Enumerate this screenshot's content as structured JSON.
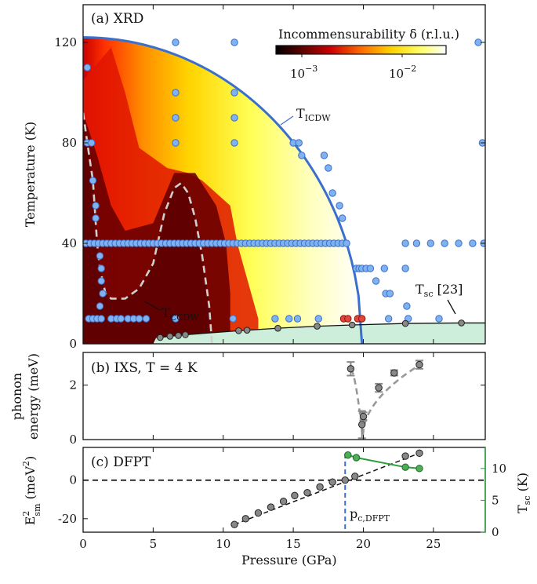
{
  "colors": {
    "icdw_line": "#3a6fce",
    "point_fill": "#7fb2ee",
    "point_edge": "#3a6fce",
    "sc_fill": "#cdeeda",
    "dfpt_green": "#2e9e3e",
    "red_point": "#e0463b",
    "gray_point": "#888888"
  },
  "chart_data": [
    {
      "type": "heatmap",
      "panel": "(a) XRD",
      "title": "(a) XRD",
      "xlabel": "",
      "ylabel": "Temperature (K)",
      "xlim": [
        0,
        28.7
      ],
      "ylim": [
        0,
        135
      ],
      "yticks": [
        "0",
        "40",
        "80",
        "120"
      ],
      "colorbar": {
        "label": "Incommensurability δ (r.l.u.)",
        "scale": "log",
        "tick_labels": [
          "10^-3",
          "10^-2"
        ],
        "colormap": [
          "#000000",
          "#5a0000",
          "#cc0000",
          "#ff6a00",
          "#ffd400",
          "#ffff66",
          "#ffffff"
        ]
      },
      "T_ICDW": {
        "label": "T_ICDW",
        "T0": 122,
        "Pc": 19.9
      },
      "T_CCDW": {
        "label": "T_CCDW",
        "x": [
          0,
          0.3,
          0.7,
          1.0,
          1.2,
          1.6,
          2.0,
          3.0,
          4.0,
          5.0,
          5.8,
          6.5,
          7.0,
          7.5,
          8.0,
          8.5,
          9.0,
          9.2
        ],
        "y": [
          92,
          80,
          65,
          40,
          30,
          20,
          18,
          18,
          22,
          32,
          52,
          62,
          64,
          60,
          50,
          35,
          15,
          0
        ]
      },
      "T_sc": {
        "label": "Tsc [23]",
        "x": [
          5.5,
          6.2,
          6.8,
          7.3,
          11.1,
          11.7,
          13.9,
          16.7,
          19.2,
          23.0,
          27.0
        ],
        "y": [
          2.5,
          3.0,
          3.3,
          3.6,
          5.2,
          5.4,
          6.2,
          7.0,
          7.5,
          8.1,
          8.3
        ]
      },
      "scan_points": [
        {
          "x": 0.3,
          "y": 110
        },
        {
          "x": 6.6,
          "y": 120
        },
        {
          "x": 10.8,
          "y": 120
        },
        {
          "x": 28.2,
          "y": 120
        },
        {
          "x": 6.6,
          "y": 100
        },
        {
          "x": 10.8,
          "y": 100
        },
        {
          "x": 6.6,
          "y": 90
        },
        {
          "x": 10.8,
          "y": 90
        },
        {
          "x": 0.3,
          "y": 80
        },
        {
          "x": 0.6,
          "y": 80
        },
        {
          "x": 6.6,
          "y": 80
        },
        {
          "x": 10.8,
          "y": 80
        },
        {
          "x": 15.0,
          "y": 80
        },
        {
          "x": 15.4,
          "y": 80
        },
        {
          "x": 28.5,
          "y": 80
        },
        {
          "x": 15.6,
          "y": 75
        },
        {
          "x": 17.2,
          "y": 75
        },
        {
          "x": 17.5,
          "y": 70
        },
        {
          "x": 0.7,
          "y": 65
        },
        {
          "x": 17.8,
          "y": 60
        },
        {
          "x": 0.9,
          "y": 55
        },
        {
          "x": 18.3,
          "y": 55
        },
        {
          "x": 0.9,
          "y": 50
        },
        {
          "x": 18.5,
          "y": 50
        },
        {
          "x": 1.2,
          "y": 35
        },
        {
          "x": 1.3,
          "y": 30
        },
        {
          "x": 1.3,
          "y": 25
        },
        {
          "x": 1.4,
          "y": 20
        },
        {
          "x": 1.2,
          "y": 15
        },
        {
          "x": 19.5,
          "y": 30
        },
        {
          "x": 19.7,
          "y": 30
        },
        {
          "x": 19.9,
          "y": 30
        },
        {
          "x": 20.2,
          "y": 30
        },
        {
          "x": 20.5,
          "y": 30
        },
        {
          "x": 20.9,
          "y": 25
        },
        {
          "x": 21.5,
          "y": 30
        },
        {
          "x": 21.6,
          "y": 20
        },
        {
          "x": 21.9,
          "y": 20
        },
        {
          "x": 23.0,
          "y": 30
        },
        {
          "x": 23.1,
          "y": 15
        },
        {
          "x": 0.4,
          "y": 10
        },
        {
          "x": 0.7,
          "y": 10
        },
        {
          "x": 1.0,
          "y": 10
        },
        {
          "x": 1.3,
          "y": 10
        },
        {
          "x": 2.0,
          "y": 10
        },
        {
          "x": 2.4,
          "y": 10
        },
        {
          "x": 2.7,
          "y": 10
        },
        {
          "x": 3.2,
          "y": 10
        },
        {
          "x": 3.6,
          "y": 10
        },
        {
          "x": 4.0,
          "y": 10
        },
        {
          "x": 4.5,
          "y": 10
        },
        {
          "x": 6.6,
          "y": 10
        },
        {
          "x": 10.7,
          "y": 10
        },
        {
          "x": 13.7,
          "y": 10
        },
        {
          "x": 14.7,
          "y": 10
        },
        {
          "x": 15.3,
          "y": 10
        },
        {
          "x": 16.8,
          "y": 10
        },
        {
          "x": 21.8,
          "y": 10
        },
        {
          "x": 23.2,
          "y": 10
        },
        {
          "x": 25.4,
          "y": 10
        }
      ],
      "scan_row_40K": {
        "x": [
          0.2,
          0.5,
          0.8,
          1.1,
          1.4,
          1.7,
          2.0,
          2.3,
          2.6,
          2.9,
          3.2,
          3.5,
          3.8,
          4.1,
          4.4,
          4.7,
          5.0,
          5.3,
          5.6,
          5.9,
          6.2,
          6.5,
          6.8,
          7.1,
          7.4,
          7.7,
          8.0,
          8.3,
          8.6,
          8.9,
          9.2,
          9.5,
          9.8,
          10.1,
          10.4,
          10.7,
          11.0,
          11.3,
          11.6,
          11.9,
          12.2,
          12.5,
          12.8,
          13.1,
          13.4,
          13.7,
          14.0,
          14.3,
          14.6,
          14.9,
          15.2,
          15.5,
          15.8,
          16.1,
          16.4,
          16.7,
          17.0,
          17.3,
          17.6,
          17.9,
          18.2,
          18.5,
          18.8,
          23.0,
          23.8,
          24.8,
          25.8,
          26.8,
          27.8,
          28.6
        ],
        "y": 40
      },
      "red_points": [
        {
          "x": 18.6,
          "y": 10
        },
        {
          "x": 18.9,
          "y": 10
        },
        {
          "x": 19.6,
          "y": 10
        },
        {
          "x": 19.9,
          "y": 10
        }
      ]
    },
    {
      "type": "scatter",
      "panel": "(b) IXS, T = 4 K",
      "title": "(b) IXS, T = 4 K",
      "ylabel": "phonon energy (meV)",
      "ylim": [
        0,
        3.2
      ],
      "yticks": [
        "0",
        "2"
      ],
      "x": [
        19.1,
        19.9,
        20.0,
        21.1,
        22.2,
        24.0
      ],
      "y": [
        2.6,
        0.55,
        0.85,
        1.9,
        2.45,
        2.75
      ],
      "yerr": [
        0.25,
        0.5,
        0.15,
        0.15,
        0.1,
        0.15
      ]
    },
    {
      "type": "line",
      "panel": "(c) DFPT",
      "title": "(c) DFPT",
      "ylabel": "E_sm^2 (meV^2)",
      "ylim": [
        -27,
        17
      ],
      "yticks": [
        "-20",
        "0"
      ],
      "x": [
        10.8,
        11.6,
        12.5,
        13.4,
        14.3,
        15.1,
        16.0,
        16.9,
        17.8,
        18.7,
        19.4,
        23.0,
        24.0
      ],
      "y": [
        -23,
        -20,
        -17,
        -14,
        -11,
        -8,
        -6.5,
        -3.5,
        -1,
        0,
        2,
        12.5,
        14
      ],
      "p_c_label": "pc,DFPT",
      "p_c": 18.7,
      "y2label": "Tsc (K)",
      "y2lim": [
        0,
        13.3
      ],
      "y2ticks": [
        "0",
        "5",
        "10"
      ],
      "tsc_x": [
        18.9,
        19.5,
        23.0,
        24.0
      ],
      "tsc_y": [
        12.1,
        11.7,
        10.2,
        10.0
      ]
    }
  ],
  "xaxis": {
    "label": "Pressure (GPa)",
    "ticks": [
      "0",
      "5",
      "10",
      "15",
      "20",
      "25"
    ]
  }
}
